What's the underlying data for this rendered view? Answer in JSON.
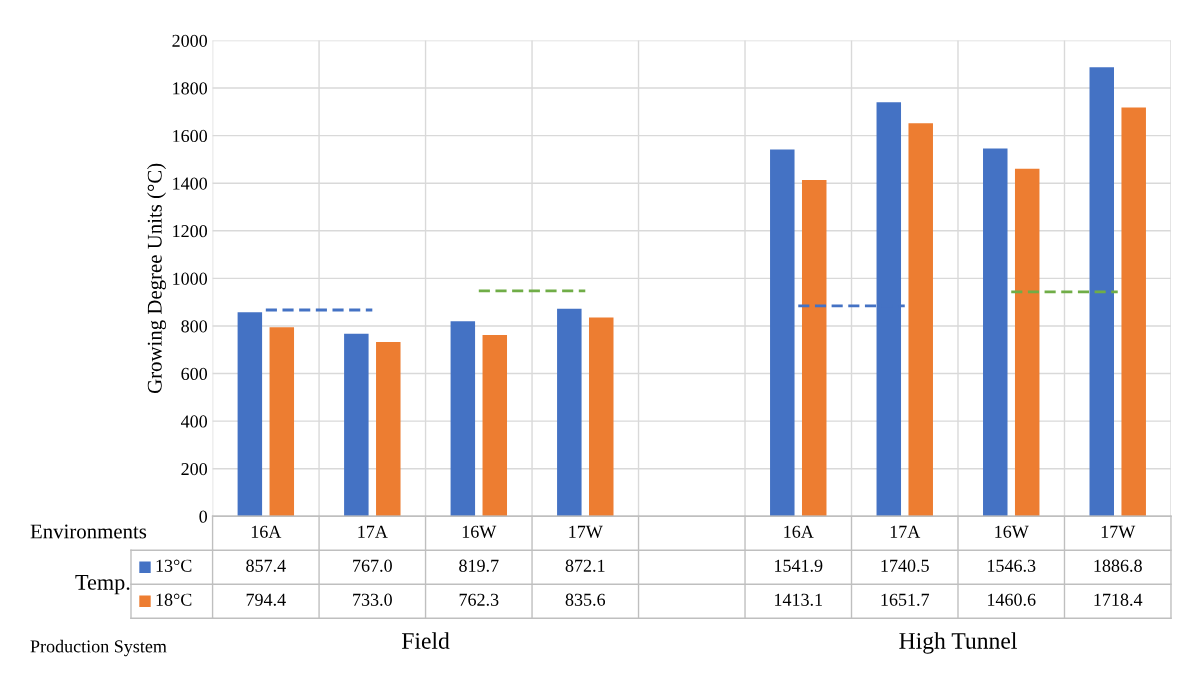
{
  "chart_data": {
    "type": "bar",
    "ylabel": "Growing Degree Units (°C)",
    "categories": [
      "16A",
      "17A",
      "16W",
      "17W",
      null,
      "16A",
      "17A",
      "16W",
      "17W"
    ],
    "series": [
      {
        "name": "13°C",
        "color": "#4472c4",
        "values": [
          857.4,
          767.0,
          819.7,
          872.1,
          null,
          1541.9,
          1740.5,
          1546.3,
          1886.8
        ],
        "value_labels": [
          "857.4",
          "767.0",
          "819.7",
          "872.1",
          null,
          "1541.9",
          "1740.5",
          "1546.3",
          "1886.8"
        ]
      },
      {
        "name": "18°C",
        "color": "#ed7d31",
        "values": [
          794.4,
          733.0,
          762.3,
          835.6,
          null,
          1413.1,
          1651.7,
          1460.6,
          1718.4
        ],
        "value_labels": [
          "794.4",
          "733.0",
          "762.3",
          "835.6",
          null,
          "1413.1",
          "1651.7",
          "1460.6",
          "1718.4"
        ]
      },
      {
        "type": "line",
        "color": "#4472c4",
        "line_style": "dashed",
        "values": [
          867,
          867,
          null,
          null,
          null,
          884,
          884,
          null,
          null
        ]
      },
      {
        "type": "line",
        "color": "#70ad47",
        "line_style": "dashed",
        "values": [
          null,
          null,
          947,
          947,
          null,
          null,
          null,
          943,
          943
        ]
      }
    ],
    "ylim": [
      0,
      2000
    ],
    "yticks": [
      0,
      200,
      400,
      600,
      800,
      1000,
      1200,
      1400,
      1600,
      1800,
      2000
    ],
    "grid": true,
    "legend": "bottom left",
    "annotations": [
      "Environments",
      "Temp.",
      "Production System",
      "Field",
      "High Tunnel"
    ]
  }
}
